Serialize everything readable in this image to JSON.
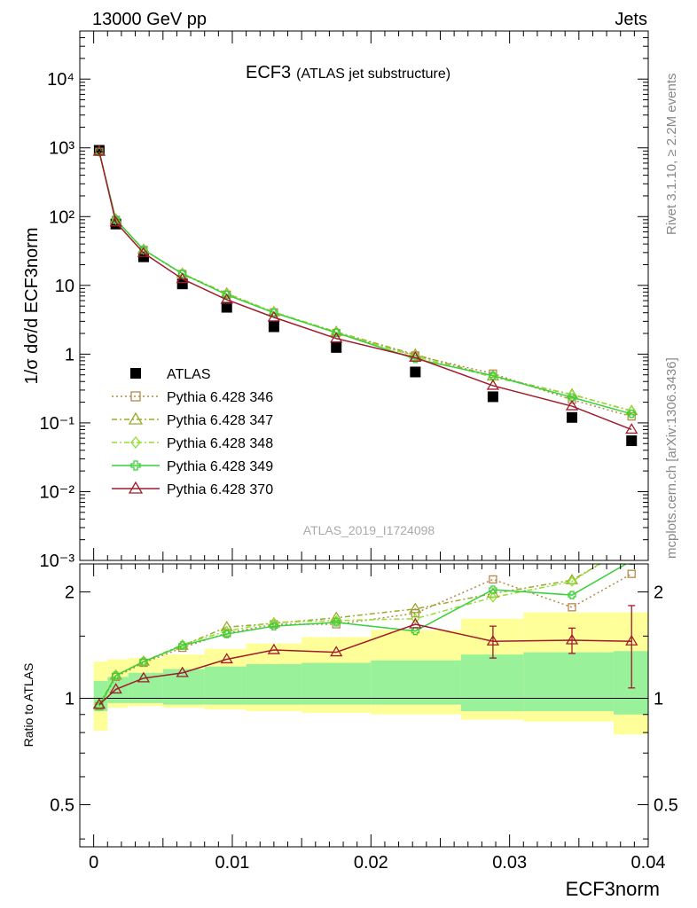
{
  "header": {
    "left": "13000 GeV pp",
    "right": "Jets"
  },
  "side_text": {
    "rivet": "Rivet 3.1.10, ≥ 2.2M events",
    "mcplots": "mcplots.cern.ch [arXiv:1306.3436]"
  },
  "chart_data": {
    "type": "line",
    "title": "ECF3",
    "subtitle": "(ATLAS jet substructure)",
    "watermark": "ATLAS_2019_I1724098",
    "xlabel": "ECF3norm",
    "ylabel_main": "1/σ dσ/d ECF3norm",
    "ylabel_ratio": "Ratio to ATLAS",
    "xlim": [
      -0.001,
      0.04
    ],
    "ylim_main": [
      0.001,
      50000
    ],
    "ylim_ratio": [
      0.38,
      2.4
    ],
    "yscale": "log",
    "x_ticks": [
      "0",
      "0.01",
      "0.02",
      "0.03",
      "0.04"
    ],
    "y_ticks_main": [
      "10⁻³",
      "10⁻²",
      "10⁻¹",
      "1",
      "10",
      "10²",
      "10³",
      "10⁴"
    ],
    "y_ticks_ratio": [
      "0.5",
      "1",
      "2"
    ],
    "x": [
      0.0004,
      0.0016,
      0.0036,
      0.0064,
      0.0096,
      0.013,
      0.0175,
      0.0232,
      0.0288,
      0.0345,
      0.0388
    ],
    "bin_edges": [
      0.0,
      0.001,
      0.0025,
      0.005,
      0.008,
      0.011,
      0.015,
      0.02,
      0.0265,
      0.031,
      0.0375,
      0.04
    ],
    "series": [
      {
        "name": "ATLAS",
        "color": "#000000",
        "marker": "square-filled",
        "dash": "none",
        "values": [
          920,
          78,
          26,
          10.5,
          4.8,
          2.5,
          1.25,
          0.55,
          0.24,
          0.12,
          0.055
        ]
      },
      {
        "name": "Pythia 6.428 346",
        "color": "#b5894c",
        "marker": "square-open",
        "dash": "2,3",
        "ratio": [
          0.95,
          1.15,
          1.26,
          1.39,
          1.53,
          1.62,
          1.62,
          1.74,
          2.17,
          1.81,
          2.25
        ],
        "values": [
          874,
          89.7,
          32.8,
          14.6,
          7.34,
          4.05,
          2.03,
          0.957,
          0.521,
          0.217,
          0.124
        ]
      },
      {
        "name": "Pythia 6.428 347",
        "color": "#9aab2c",
        "marker": "triangle-open",
        "dash": "6,3,2,3",
        "ratio": [
          0.96,
          1.16,
          1.27,
          1.41,
          1.59,
          1.63,
          1.69,
          1.79,
          1.98,
          2.16,
          2.7
        ],
        "values": [
          883,
          90.5,
          33.0,
          14.8,
          7.63,
          4.08,
          2.11,
          0.985,
          0.475,
          0.259,
          0.149
        ]
      },
      {
        "name": "Pythia 6.428 348",
        "color": "#8fe030",
        "marker": "diamond-open",
        "dash": "6,3,2,3",
        "ratio": [
          0.95,
          1.16,
          1.27,
          1.42,
          1.55,
          1.64,
          1.66,
          1.68,
          1.93,
          2.14,
          2.75
        ],
        "values": [
          874,
          90.5,
          33.0,
          14.9,
          7.44,
          4.1,
          2.08,
          0.924,
          0.463,
          0.257,
          0.151
        ]
      },
      {
        "name": "Pythia 6.428 349",
        "color": "#3ad13a",
        "marker": "cross",
        "dash": "none",
        "ratio": [
          0.95,
          1.16,
          1.27,
          1.41,
          1.52,
          1.6,
          1.64,
          1.55,
          2.03,
          1.96,
          2.45
        ],
        "values": [
          874,
          90.5,
          33.0,
          14.8,
          7.3,
          4.0,
          2.05,
          0.853,
          0.487,
          0.235,
          0.135
        ]
      },
      {
        "name": "Pythia 6.428 370",
        "color": "#a01c2c",
        "marker": "triangle-open",
        "dash": "none",
        "ratio": [
          0.96,
          1.06,
          1.14,
          1.18,
          1.29,
          1.37,
          1.35,
          1.62,
          1.45,
          1.46,
          1.45
        ],
        "values": [
          883,
          82.7,
          29.6,
          12.4,
          6.19,
          3.43,
          1.69,
          0.891,
          0.348,
          0.175,
          0.08
        ]
      }
    ],
    "band_outer": {
      "low": [
        0.81,
        0.94,
        0.95,
        0.94,
        0.93,
        0.92,
        0.91,
        0.9,
        0.87,
        0.86,
        0.79
      ],
      "high": [
        1.27,
        1.29,
        1.3,
        1.33,
        1.38,
        1.43,
        1.49,
        1.56,
        1.68,
        1.75,
        1.75
      ]
    },
    "band_inner": {
      "low": [
        0.92,
        0.97,
        0.97,
        0.96,
        0.96,
        0.96,
        0.96,
        0.96,
        0.92,
        0.92,
        0.9
      ],
      "high": [
        1.12,
        1.15,
        1.18,
        1.21,
        1.23,
        1.25,
        1.26,
        1.28,
        1.33,
        1.35,
        1.36
      ]
    },
    "error_bars_370": [
      null,
      null,
      null,
      null,
      null,
      null,
      null,
      null,
      0.15,
      0.12,
      0.38
    ],
    "legend_position": "lower-left"
  }
}
